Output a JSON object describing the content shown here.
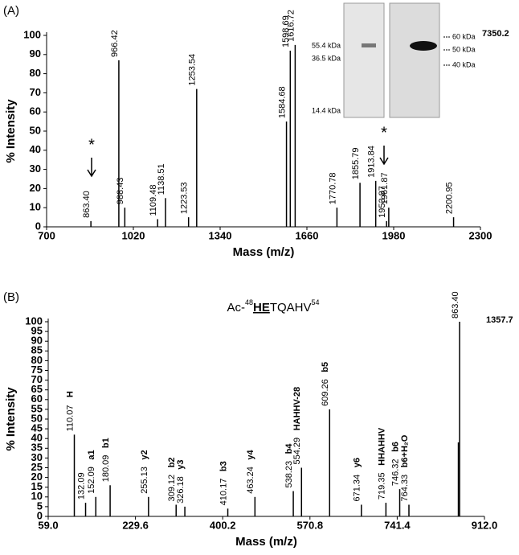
{
  "chart_data": [
    {
      "type": "spectrum",
      "panel": "(A)",
      "xlabel": "Mass (m/z)",
      "ylabel": "% Intensity",
      "max_counts": 7350.2,
      "xlim": [
        700,
        2300
      ],
      "xticks": [
        700,
        1020,
        1340,
        1660,
        1980,
        2300
      ],
      "ylim": [
        0,
        100
      ],
      "yticks": [
        0,
        10,
        20,
        30,
        40,
        50,
        60,
        70,
        80,
        90,
        100
      ],
      "x": [
        863.4,
        966.42,
        988.43,
        1109.48,
        1138.51,
        1223.53,
        1253.54,
        1584.68,
        1598.69,
        1616.72,
        1770.78,
        1855.79,
        1913.84,
        1953.87,
        1961.87,
        2200.95
      ],
      "labels": [
        "863.40",
        "966.42",
        "988.43",
        "1109.48",
        "1138.51",
        "1223.53",
        "1253.54",
        "1584.68",
        "1598.69",
        "1616.72",
        "1770.78",
        "1855.79",
        "1913.84",
        "1953.87",
        "1961.87",
        "2200.95"
      ],
      "values": [
        3,
        87,
        10,
        4,
        15,
        5,
        72,
        55,
        92,
        95,
        10,
        23,
        24,
        3,
        10,
        5
      ],
      "color": "#000000",
      "annotations": [
        "*",
        "*"
      ],
      "gel_labels": [
        "55.4 kDa",
        "36.5 kDa",
        "14.4 kDa",
        "60 kDa",
        "50 kDa",
        "40 kDa"
      ]
    },
    {
      "type": "spectrum",
      "panel": "(B)",
      "xlabel": "Mass (m/z)",
      "ylabel": "% Intensity",
      "max_counts": 1357.7,
      "title": [
        "Ac-",
        "48",
        "HE",
        "TQAHV",
        "54"
      ],
      "xlim": [
        59,
        912
      ],
      "xticks": [
        {
          "value": 59,
          "label": "59.0"
        },
        {
          "value": 229.6,
          "label": "229.6"
        },
        {
          "value": 400.2,
          "label": "400.2"
        },
        {
          "value": 570.8,
          "label": "570.8"
        },
        {
          "value": 741.4,
          "label": "741.4"
        },
        {
          "value": 912,
          "label": "912.0"
        }
      ],
      "ylim": [
        0,
        100
      ],
      "yticks": [
        0,
        5,
        10,
        15,
        20,
        25,
        30,
        35,
        40,
        45,
        50,
        55,
        60,
        65,
        70,
        75,
        80,
        85,
        90,
        95,
        100
      ],
      "x": [
        110.07,
        132.09,
        152.09,
        180.09,
        255.13,
        309.12,
        326.18,
        410.17,
        463.24,
        538.23,
        554.29,
        609.26,
        671.34,
        719.35,
        746.32,
        764.33,
        861,
        863.4
      ],
      "labels": [
        "110.07",
        "132.09",
        "152.09",
        "180.09",
        "255.13",
        "309.12",
        "326.18",
        "410.17",
        "463.24",
        "538.23",
        "554.29",
        "609.26",
        "671.34",
        "719.35",
        "746.32",
        "764.33",
        null,
        "863.40"
      ],
      "ions": [
        "H",
        null,
        "a1",
        "b1",
        "y2",
        "b2",
        "y3",
        "b3",
        "y4",
        "b4",
        "HAHHV-28",
        "b5",
        "y6",
        "HHAHHV",
        "b6",
        "b6+H₂O",
        null,
        null
      ],
      "values": [
        42,
        7,
        10,
        16,
        10,
        6,
        5,
        4,
        10,
        13,
        25,
        55,
        6,
        7,
        14,
        6,
        38,
        100
      ],
      "color": "#000000"
    }
  ]
}
